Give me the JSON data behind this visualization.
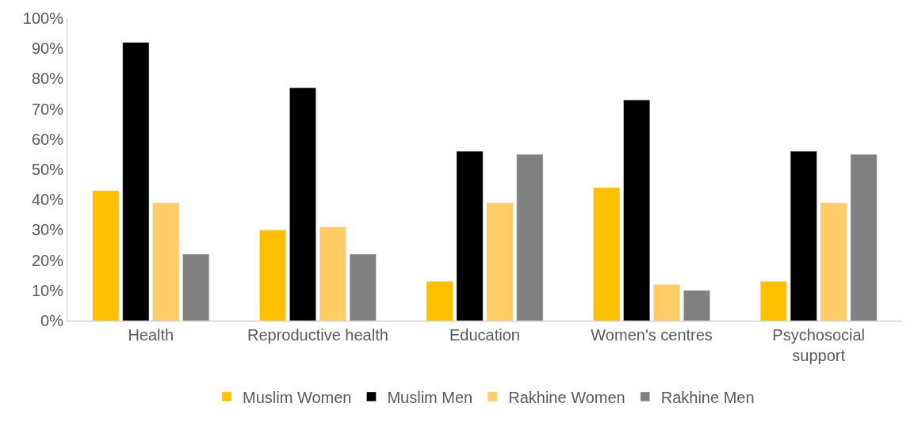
{
  "chart_data": {
    "type": "bar",
    "categories": [
      "Health",
      "Reproductive health",
      "Education",
      "Women's centres",
      "Psychosocial support"
    ],
    "series": [
      {
        "name": "Muslim Women",
        "color": "#ffc000",
        "values": [
          43,
          30,
          13,
          44,
          13
        ]
      },
      {
        "name": "Muslim Men",
        "color": "#000000",
        "values": [
          92,
          77,
          56,
          73,
          56
        ]
      },
      {
        "name": "Rakhine Women",
        "color": "#ffcc66",
        "values": [
          39,
          31,
          39,
          12,
          39
        ]
      },
      {
        "name": "Rakhine Men",
        "color": "#808080",
        "values": [
          22,
          22,
          55,
          10,
          55
        ]
      }
    ],
    "ylim": [
      0,
      100
    ],
    "yticks": [
      {
        "value": 0,
        "label": "0%"
      },
      {
        "value": 10,
        "label": "10%"
      },
      {
        "value": 20,
        "label": "20%"
      },
      {
        "value": 30,
        "label": "30%"
      },
      {
        "value": 40,
        "label": "40%"
      },
      {
        "value": 50,
        "label": "50%"
      },
      {
        "value": 60,
        "label": "60%"
      },
      {
        "value": 70,
        "label": "70%"
      },
      {
        "value": 80,
        "label": "80%"
      },
      {
        "value": 90,
        "label": "90%"
      },
      {
        "value": 100,
        "label": "100%"
      }
    ],
    "grid": false,
    "legend": "bottom"
  }
}
